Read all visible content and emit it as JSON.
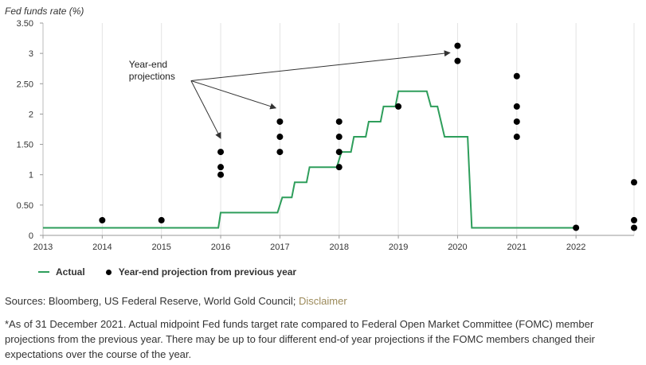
{
  "chart_data": {
    "type": "line",
    "ylabel": "Fed funds rate (%)",
    "ylim": [
      0,
      3.5
    ],
    "yticks": [
      "0",
      "0.50",
      "1",
      "1.50",
      "2",
      "2.50",
      "3",
      "3.50"
    ],
    "ytick_values": [
      0,
      0.5,
      1,
      1.5,
      2,
      2.5,
      3,
      3.5
    ],
    "xlim": [
      2013,
      2022.98
    ],
    "xticks": [
      "2013",
      "2014",
      "2015",
      "2016",
      "2017",
      "2018",
      "2019",
      "2020",
      "2021",
      "2022"
    ],
    "xtick_values": [
      2013,
      2014,
      2015,
      2016,
      2017,
      2018,
      2019,
      2020,
      2021,
      2022
    ],
    "grid": "vertical",
    "legend_position": "bottom-left",
    "series": [
      {
        "name": "Actual",
        "color": "#2e9e5b",
        "type": "step-line",
        "points": [
          [
            2013.0,
            0.125
          ],
          [
            2015.96,
            0.125
          ],
          [
            2016.0,
            0.375
          ],
          [
            2016.96,
            0.375
          ],
          [
            2017.04,
            0.625
          ],
          [
            2017.2,
            0.625
          ],
          [
            2017.25,
            0.875
          ],
          [
            2017.45,
            0.875
          ],
          [
            2017.5,
            1.125
          ],
          [
            2017.96,
            1.125
          ],
          [
            2018.04,
            1.375
          ],
          [
            2018.2,
            1.375
          ],
          [
            2018.25,
            1.625
          ],
          [
            2018.45,
            1.625
          ],
          [
            2018.5,
            1.875
          ],
          [
            2018.7,
            1.875
          ],
          [
            2018.75,
            2.125
          ],
          [
            2018.95,
            2.125
          ],
          [
            2019.0,
            2.375
          ],
          [
            2019.48,
            2.375
          ],
          [
            2019.55,
            2.125
          ],
          [
            2019.66,
            2.125
          ],
          [
            2019.78,
            1.625
          ],
          [
            2020.17,
            1.625
          ],
          [
            2020.24,
            0.125
          ],
          [
            2021.98,
            0.125
          ]
        ]
      },
      {
        "name": "Year-end projection from previous year",
        "color": "#000000",
        "type": "scatter",
        "points": [
          [
            2014,
            0.25
          ],
          [
            2015,
            0.25
          ],
          [
            2016,
            1.375
          ],
          [
            2016,
            1.125
          ],
          [
            2016,
            1.0
          ],
          [
            2017,
            1.875
          ],
          [
            2017,
            1.625
          ],
          [
            2017,
            1.375
          ],
          [
            2018,
            1.875
          ],
          [
            2018,
            1.625
          ],
          [
            2018,
            1.375
          ],
          [
            2018,
            1.125
          ],
          [
            2019,
            2.125
          ],
          [
            2020,
            3.125
          ],
          [
            2020,
            2.875
          ],
          [
            2021,
            2.625
          ],
          [
            2021,
            2.125
          ],
          [
            2021,
            1.875
          ],
          [
            2021,
            1.625
          ],
          [
            2022,
            0.125
          ],
          [
            2022.98,
            0.875
          ],
          [
            2022.98,
            0.25
          ],
          [
            2022.98,
            0.125
          ]
        ]
      }
    ],
    "annotation": {
      "text_lines": [
        "Year-end",
        "projections"
      ],
      "source_point": [
        2015.5,
        2.55
      ],
      "targets": [
        [
          2016.0,
          1.6
        ],
        [
          2016.93,
          2.1
        ],
        [
          2019.87,
          3.01
        ]
      ]
    }
  },
  "legend": {
    "actual_label": "Actual",
    "projection_label": "Year-end projection from previous year"
  },
  "footer": {
    "sources_text": "Sources: Bloomberg, US Federal Reserve, World Gold Council; ",
    "disclaimer_link": "Disclaimer",
    "note": "*As of 31 December 2021. Actual midpoint Fed funds target rate compared to Federal Open Market Committee (FOMC) member projections from the previous year. There may be up to four different end-of year projections if the FOMC members changed their expectations over the course of the year."
  }
}
